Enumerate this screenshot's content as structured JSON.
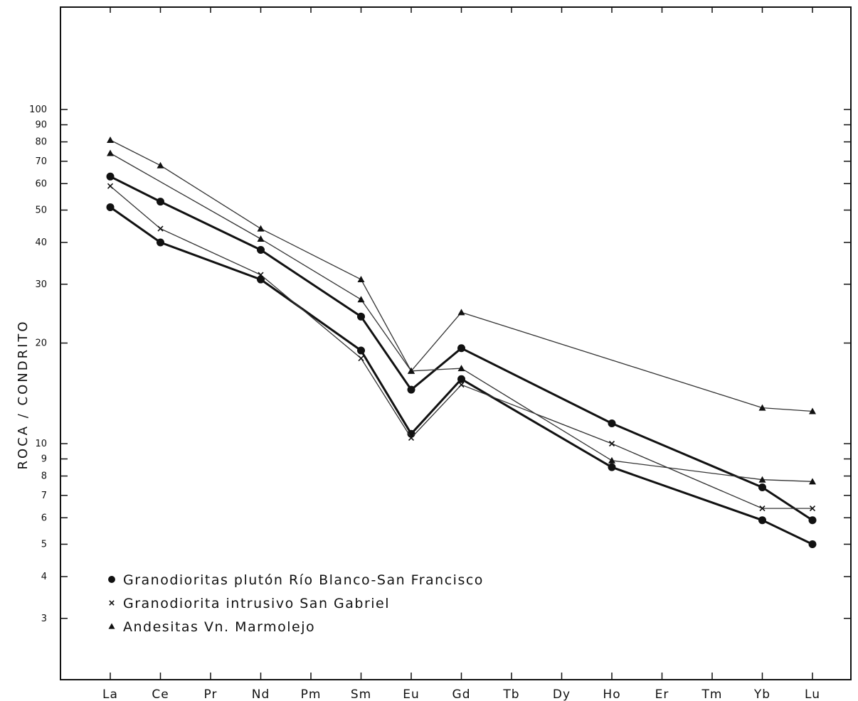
{
  "chart_data": {
    "type": "line",
    "title": "",
    "xlabel": "",
    "ylabel": "ROCA / CONDRITO",
    "yscale": "log",
    "ylim": [
      2,
      200
    ],
    "yticks": [
      3,
      4,
      5,
      6,
      7,
      8,
      9,
      10,
      20,
      30,
      40,
      50,
      60,
      70,
      80,
      90,
      100
    ],
    "categories": [
      "La",
      "Ce",
      "Pr",
      "Nd",
      "Pm",
      "Sm",
      "Eu",
      "Gd",
      "Tb",
      "Dy",
      "Ho",
      "Er",
      "Tm",
      "Yb",
      "Lu"
    ],
    "grid": false,
    "legend_position": "bottom-left",
    "legend": [
      {
        "label": "Granodioritas plutón Río Blanco-San Francisco",
        "marker": "circle"
      },
      {
        "label": "Granodiorita intrusivo San Gabriel",
        "marker": "cross"
      },
      {
        "label": "Andesitas Vn. Marmolejo",
        "marker": "triangle"
      }
    ],
    "series": [
      {
        "marker": "circle",
        "style": "bold",
        "points": [
          [
            "La",
            63
          ],
          [
            "Ce",
            53
          ],
          [
            "Nd",
            38
          ],
          [
            "Sm",
            24
          ],
          [
            "Eu",
            14.5
          ],
          [
            "Gd",
            19.3
          ],
          [
            "Ho",
            11.5
          ],
          [
            "Yb",
            7.4
          ],
          [
            "Lu",
            5.9
          ]
        ]
      },
      {
        "marker": "circle",
        "style": "bold",
        "points": [
          [
            "La",
            51
          ],
          [
            "Ce",
            40
          ],
          [
            "Nd",
            31
          ],
          [
            "Sm",
            19
          ],
          [
            "Eu",
            10.7
          ],
          [
            "Gd",
            15.6
          ],
          [
            "Ho",
            8.5
          ],
          [
            "Yb",
            5.9
          ],
          [
            "Lu",
            5.0
          ]
        ]
      },
      {
        "marker": "cross",
        "style": "thin",
        "points": [
          [
            "La",
            59
          ],
          [
            "Ce",
            44
          ],
          [
            "Nd",
            32
          ],
          [
            "Sm",
            18
          ],
          [
            "Eu",
            10.4
          ],
          [
            "Gd",
            15
          ],
          [
            "Ho",
            10
          ],
          [
            "Yb",
            6.4
          ],
          [
            "Lu",
            6.4
          ]
        ]
      },
      {
        "marker": "triangle",
        "style": "thin",
        "points": [
          [
            "La",
            81
          ],
          [
            "Ce",
            68
          ],
          [
            "Nd",
            44
          ],
          [
            "Sm",
            31
          ],
          [
            "Eu",
            16.5
          ],
          [
            "Gd",
            24.7
          ],
          [
            "Yb",
            12.8
          ],
          [
            "Lu",
            12.5
          ]
        ]
      },
      {
        "marker": "triangle",
        "style": "thin",
        "points": [
          [
            "La",
            74
          ],
          [
            "Nd",
            41
          ],
          [
            "Sm",
            27
          ],
          [
            "Eu",
            16.5
          ],
          [
            "Gd",
            16.8
          ],
          [
            "Ho",
            8.9
          ],
          [
            "Yb",
            7.8
          ],
          [
            "Lu",
            7.7
          ]
        ]
      }
    ]
  }
}
